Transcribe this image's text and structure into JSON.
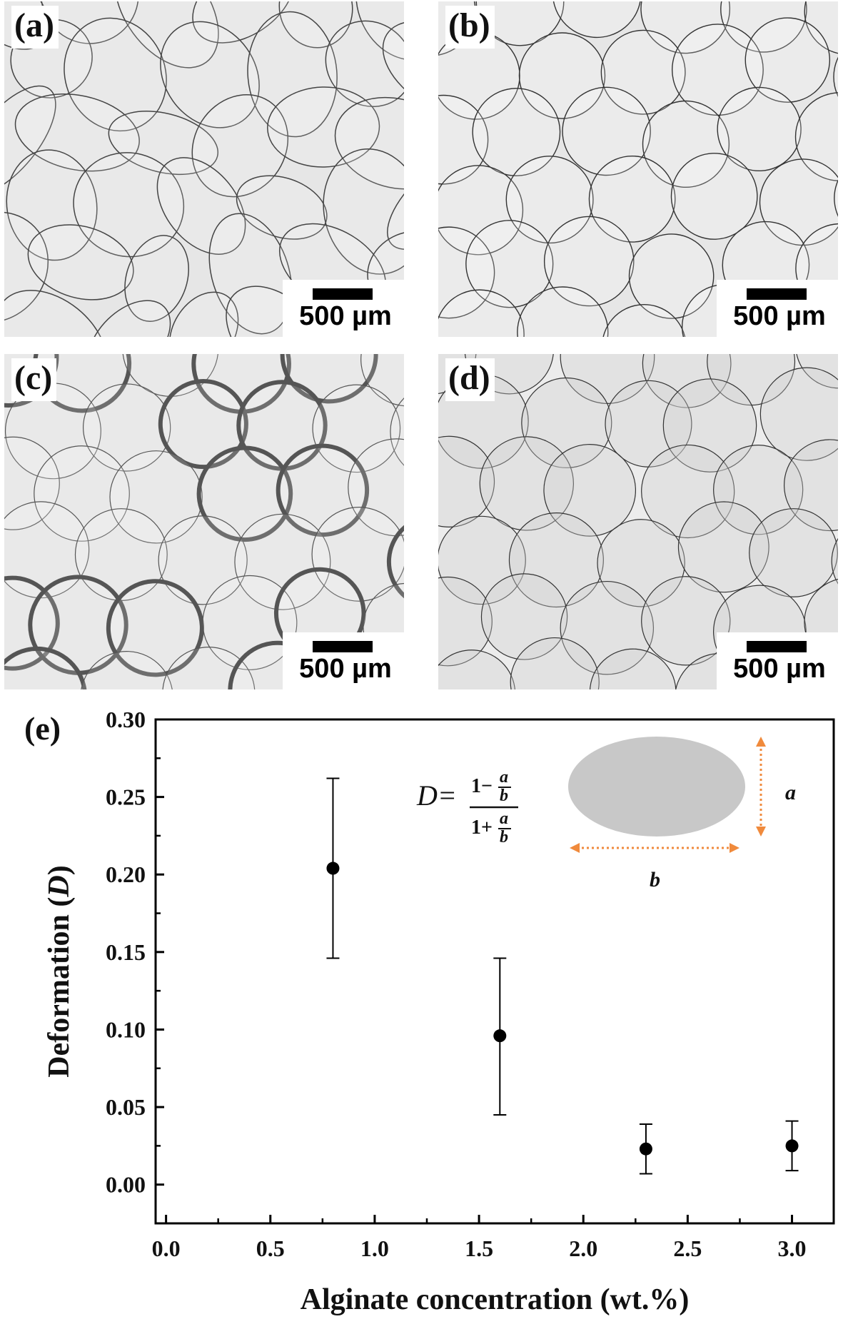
{
  "panels": [
    {
      "id": "a",
      "label": "(a)",
      "scale_text": "500 µm",
      "style": "deformed"
    },
    {
      "id": "b",
      "label": "(b)",
      "scale_text": "500 µm",
      "style": "packed-thin"
    },
    {
      "id": "c",
      "label": "(c)",
      "scale_text": "500 µm",
      "style": "thick-rings"
    },
    {
      "id": "d",
      "label": "(d)",
      "scale_text": "500 µm",
      "style": "packed-light"
    }
  ],
  "chart_panel_label": "(e)",
  "chart_data": {
    "type": "scatter",
    "title": "",
    "xlabel": "Alginate concentration (wt.%)",
    "ylabel_prefix": "Deformation (",
    "ylabel_var": "D",
    "ylabel_suffix": ")",
    "xlim": [
      -0.05,
      3.2
    ],
    "ylim": [
      -0.025,
      0.3
    ],
    "xticks": [
      0.0,
      0.5,
      1.0,
      1.5,
      2.0,
      2.5,
      3.0
    ],
    "xtick_labels": [
      "0.0",
      "0.5",
      "1.0",
      "1.5",
      "2.0",
      "2.5",
      "3.0"
    ],
    "yticks": [
      0.0,
      0.05,
      0.1,
      0.15,
      0.2,
      0.25,
      0.3
    ],
    "ytick_labels": [
      "0.00",
      "0.05",
      "0.10",
      "0.15",
      "0.20",
      "0.25",
      "0.30"
    ],
    "grid": false,
    "points": [
      {
        "x": 0.8,
        "y": 0.204,
        "err_low": 0.146,
        "err_high": 0.262
      },
      {
        "x": 1.6,
        "y": 0.096,
        "err_low": 0.045,
        "err_high": 0.146
      },
      {
        "x": 2.3,
        "y": 0.023,
        "err_low": 0.007,
        "err_high": 0.039
      },
      {
        "x": 3.0,
        "y": 0.025,
        "err_low": 0.009,
        "err_high": 0.041
      }
    ],
    "inset": {
      "equation_lhs": "D=",
      "numerator": "1−",
      "denominator": "1+",
      "var_a": "a",
      "var_b": "b",
      "ellipse_color": "#c8c8c8",
      "arrow_color": "#f08a3c",
      "dim_label_a": "a",
      "dim_label_b": "b"
    }
  }
}
